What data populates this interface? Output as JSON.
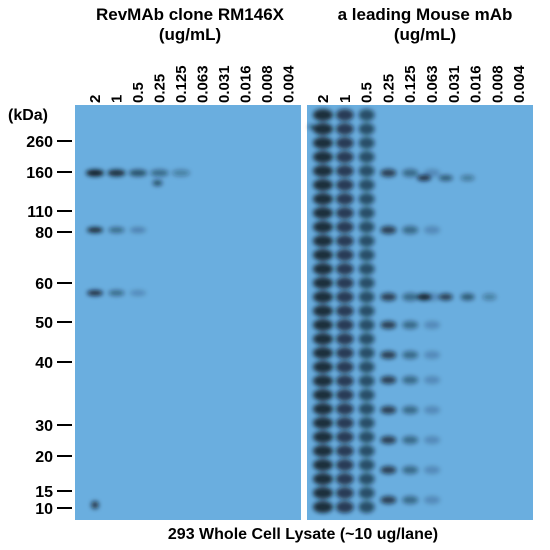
{
  "panels": [
    {
      "title": "RevMAb clone RM146X",
      "unit": "(ug/mL)",
      "lanes": [
        "2",
        "1",
        "0.5",
        "0.25",
        "0.125",
        "0.063",
        "0.031",
        "0.016",
        "0.008",
        "0.004"
      ]
    },
    {
      "title": "a leading Mouse mAb",
      "unit": "(ug/mL)",
      "lanes": [
        "2",
        "1",
        "0.5",
        "0.25",
        "0.125",
        "0.063",
        "0.031",
        "0.016",
        "0.008",
        "0.004"
      ]
    }
  ],
  "markers": {
    "unit": "(kDa)",
    "labels": [
      "260",
      "160",
      "110",
      "80",
      "60",
      "50",
      "40",
      "30",
      "20",
      "15",
      "10"
    ]
  },
  "caption": "293 Whole Cell Lysate (~10 ug/lane)"
}
